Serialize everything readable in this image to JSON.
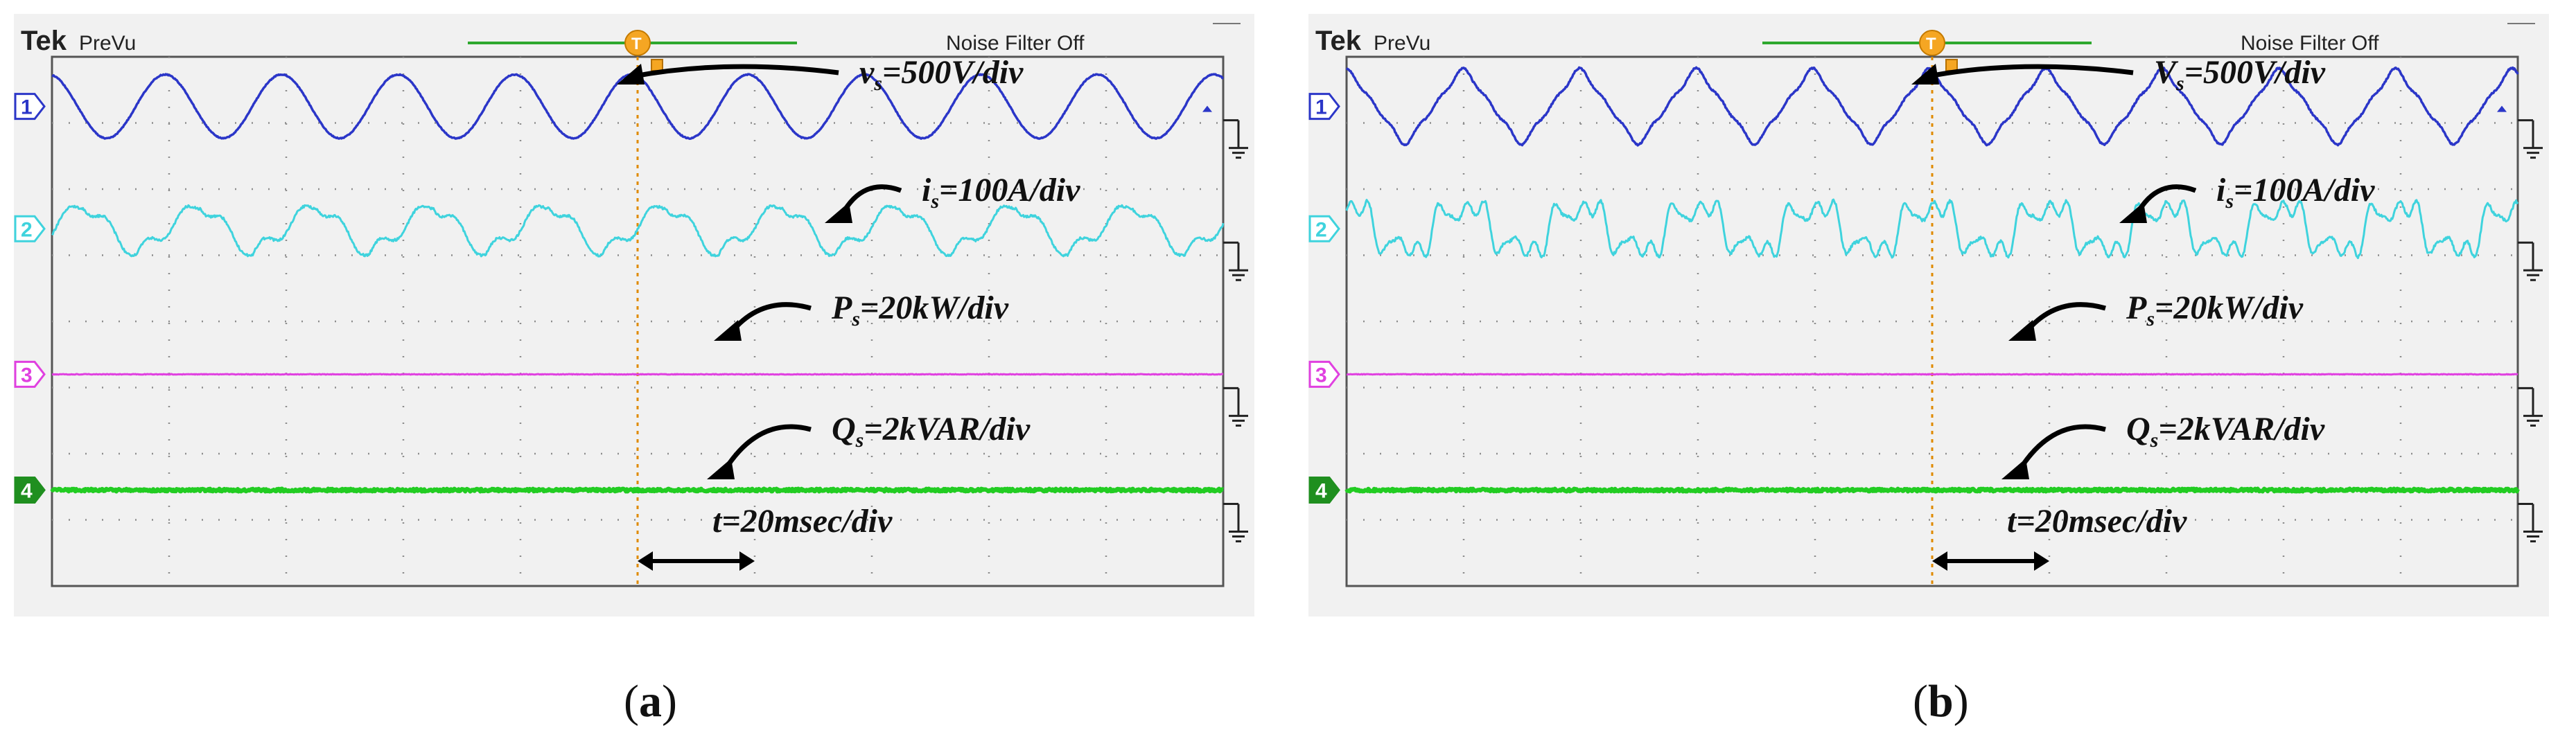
{
  "panels": [
    {
      "id": "a",
      "brand": "Tek",
      "mode": "PreVu",
      "filter_status": "Noise Filter Off",
      "caption_open": "(",
      "caption_letter": "a",
      "caption_close": ")",
      "channels": [
        {
          "number": "1",
          "color": "#2b36c8",
          "label_sym": "v",
          "label_sub": "s",
          "label_rest": "=500V/div"
        },
        {
          "number": "2",
          "color": "#3fd3dd",
          "label_sym": "i",
          "label_sub": "s",
          "label_rest": "=100A/div"
        },
        {
          "number": "3",
          "color": "#e040e0",
          "label_sym": "P",
          "label_sub": "s",
          "label_rest": "=20kW/div"
        },
        {
          "number": "4",
          "color": "#22cc22",
          "label_sym": "Q",
          "label_sub": "s",
          "label_rest": "=2kVAR/div"
        }
      ],
      "time_label": "t=20msec/div"
    },
    {
      "id": "b",
      "brand": "Tek",
      "mode": "PreVu",
      "filter_status": "Noise Filter Off",
      "caption_open": "(",
      "caption_letter": "b",
      "caption_close": ")",
      "channels": [
        {
          "number": "1",
          "color": "#2b36c8",
          "label_sym": "V",
          "label_sub": "s",
          "label_rest": "=500V/div"
        },
        {
          "number": "2",
          "color": "#3fd3dd",
          "label_sym": "i",
          "label_sub": "s",
          "label_rest": "=100A/div"
        },
        {
          "number": "3",
          "color": "#e040e0",
          "label_sym": "P",
          "label_sub": "s",
          "label_rest": "=20kW/div"
        },
        {
          "number": "4",
          "color": "#22cc22",
          "label_sym": "Q",
          "label_sub": "s",
          "label_rest": "=2kVAR/div"
        }
      ],
      "time_label": "t=20msec/div"
    }
  ],
  "chart_data": [
    {
      "type": "line",
      "title": "",
      "x_unit": "msec",
      "x_range": [
        0,
        200
      ],
      "grid": true,
      "cycles_shown": 10,
      "series": [
        {
          "name": "vs",
          "scale": "500V/div",
          "shape": "sinusoidal"
        },
        {
          "name": "is",
          "scale": "100A/div",
          "shape": "distorted sawtooth-like"
        },
        {
          "name": "Ps",
          "scale": "20kW/div",
          "shape": "constant"
        },
        {
          "name": "Qs",
          "scale": "2kVAR/div",
          "shape": "constant near zero"
        }
      ]
    },
    {
      "type": "line",
      "title": "",
      "x_unit": "msec",
      "x_range": [
        0,
        200
      ],
      "grid": true,
      "cycles_shown": 10,
      "series": [
        {
          "name": "Vs",
          "scale": "500V/div",
          "shape": "distorted sinusoidal (notched peaks)"
        },
        {
          "name": "is",
          "scale": "100A/div",
          "shape": "distorted with harmonics"
        },
        {
          "name": "Ps",
          "scale": "20kW/div",
          "shape": "constant"
        },
        {
          "name": "Qs",
          "scale": "2kVAR/div",
          "shape": "constant near zero"
        }
      ]
    }
  ]
}
